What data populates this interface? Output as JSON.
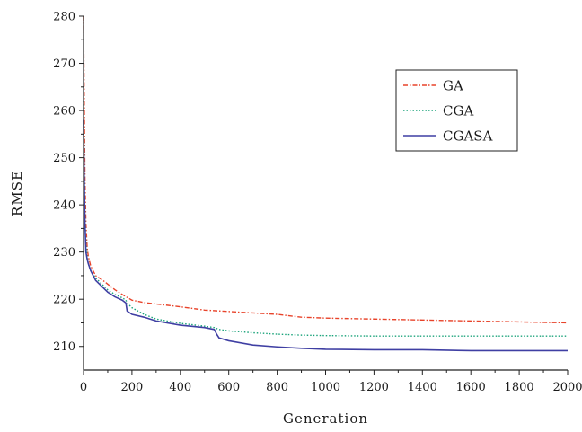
{
  "chart_data": {
    "type": "line",
    "title": "",
    "xlabel": "Generation",
    "ylabel": "RMSE",
    "xlim": [
      0,
      2000
    ],
    "ylim": [
      205,
      280
    ],
    "xticks": [
      0,
      200,
      400,
      600,
      800,
      1000,
      1200,
      1400,
      1600,
      1800,
      2000
    ],
    "yticks": [
      210,
      220,
      230,
      240,
      250,
      260,
      270,
      280
    ],
    "grid": false,
    "legend_position": "top-right",
    "series": [
      {
        "name": "GA",
        "color": "#e8432a",
        "dash": "dash-dot",
        "x": [
          0,
          3,
          6,
          10,
          15,
          20,
          30,
          50,
          80,
          100,
          130,
          160,
          200,
          250,
          300,
          400,
          500,
          600,
          700,
          800,
          900,
          1000,
          1200,
          1400,
          1600,
          1800,
          2000
        ],
        "y": [
          280,
          262,
          245,
          236,
          231,
          229,
          227,
          225,
          224,
          223.2,
          222,
          221,
          219.8,
          219.3,
          219,
          218.4,
          217.7,
          217.4,
          217.1,
          216.8,
          216.2,
          216,
          215.8,
          215.6,
          215.4,
          215.2,
          215
        ]
      },
      {
        "name": "CGA",
        "color": "#1aa37a",
        "dash": "dotted",
        "x": [
          0,
          3,
          6,
          10,
          15,
          20,
          30,
          50,
          80,
          100,
          130,
          160,
          175,
          180,
          200,
          250,
          300,
          400,
          500,
          540,
          560,
          600,
          700,
          800,
          900,
          1000,
          1200,
          1400,
          1600,
          1800,
          2000
        ],
        "y": [
          262,
          248,
          238,
          232,
          229,
          227.5,
          226,
          224.5,
          223,
          222,
          221,
          220.3,
          219.8,
          219.2,
          218.2,
          216.8,
          215.8,
          214.9,
          214.3,
          214,
          213.6,
          213.3,
          212.9,
          212.6,
          212.4,
          212.3,
          212.2,
          212.2,
          212.2,
          212.2,
          212.2
        ]
      },
      {
        "name": "CGASA",
        "color": "#3f3fa3",
        "dash": "solid",
        "x": [
          0,
          3,
          6,
          10,
          15,
          20,
          30,
          50,
          80,
          100,
          130,
          160,
          175,
          180,
          200,
          250,
          300,
          400,
          500,
          540,
          550,
          560,
          600,
          700,
          800,
          900,
          1000,
          1200,
          1400,
          1600,
          1800,
          2000
        ],
        "y": [
          258,
          245,
          236,
          230,
          228.5,
          227.5,
          226,
          224,
          222.5,
          221.5,
          220.5,
          219.8,
          219.2,
          217.5,
          216.8,
          216.2,
          215.4,
          214.5,
          214,
          213.6,
          212.6,
          211.8,
          211.2,
          210.3,
          209.9,
          209.6,
          209.4,
          209.3,
          209.3,
          209.1,
          209.1,
          209.1
        ]
      }
    ]
  }
}
